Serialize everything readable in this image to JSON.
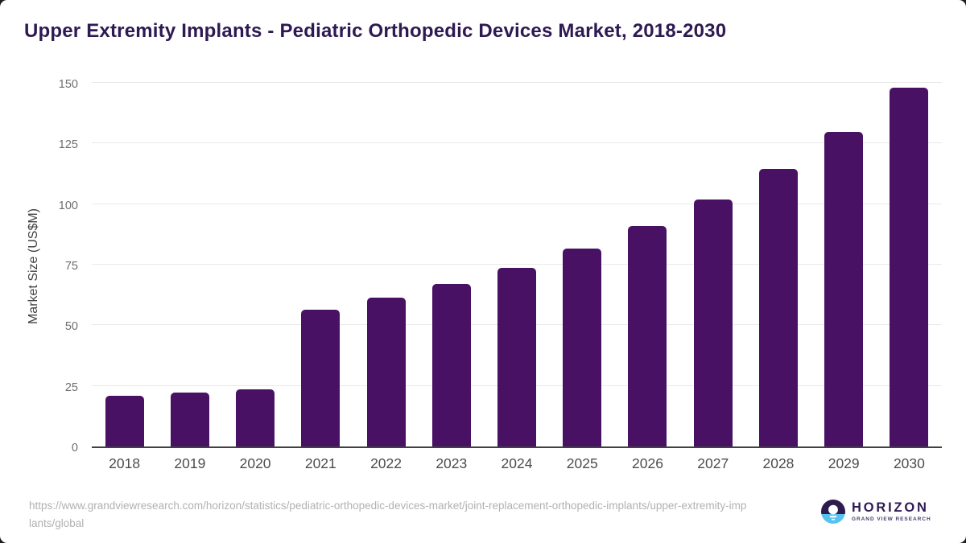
{
  "chart_data": {
    "type": "bar",
    "title": "Upper Extremity Implants - Pediatric Orthopedic Devices Market, 2018-2030",
    "xlabel": "",
    "ylabel": "Market Size (US$M)",
    "categories": [
      "2018",
      "2019",
      "2020",
      "2021",
      "2022",
      "2023",
      "2024",
      "2025",
      "2026",
      "2027",
      "2028",
      "2029",
      "2030"
    ],
    "values": [
      21.0,
      22.4,
      23.6,
      56.5,
      61.5,
      67.0,
      73.7,
      81.7,
      91.0,
      102.0,
      114.6,
      129.8,
      148.0
    ],
    "ylim": [
      0,
      150
    ],
    "yticks": [
      0,
      25,
      50,
      75,
      100,
      125,
      150
    ],
    "grid": "horizontal",
    "legend": "none",
    "bar_color": "#481164"
  },
  "footer": {
    "source_url": "https://www.grandviewresearch.com/horizon/statistics/pediatric-orthopedic-devices-market/joint-replacement-orthopedic-implants/upper-extremity-implants/global",
    "logo": {
      "name": "HORIZON",
      "subtitle": "GRAND VIEW RESEARCH"
    }
  },
  "colors": {
    "bar": "#481164",
    "title_text": "#2e1a52",
    "axis_line": "#414141",
    "gridline": "#e9e9e9",
    "y_tick_text": "#6e6e6e",
    "x_tick_text": "#4c4c4c",
    "url_text": "#b1b1b1",
    "logo_purple": "#2e1b4e",
    "logo_blue": "#56c3ee"
  }
}
